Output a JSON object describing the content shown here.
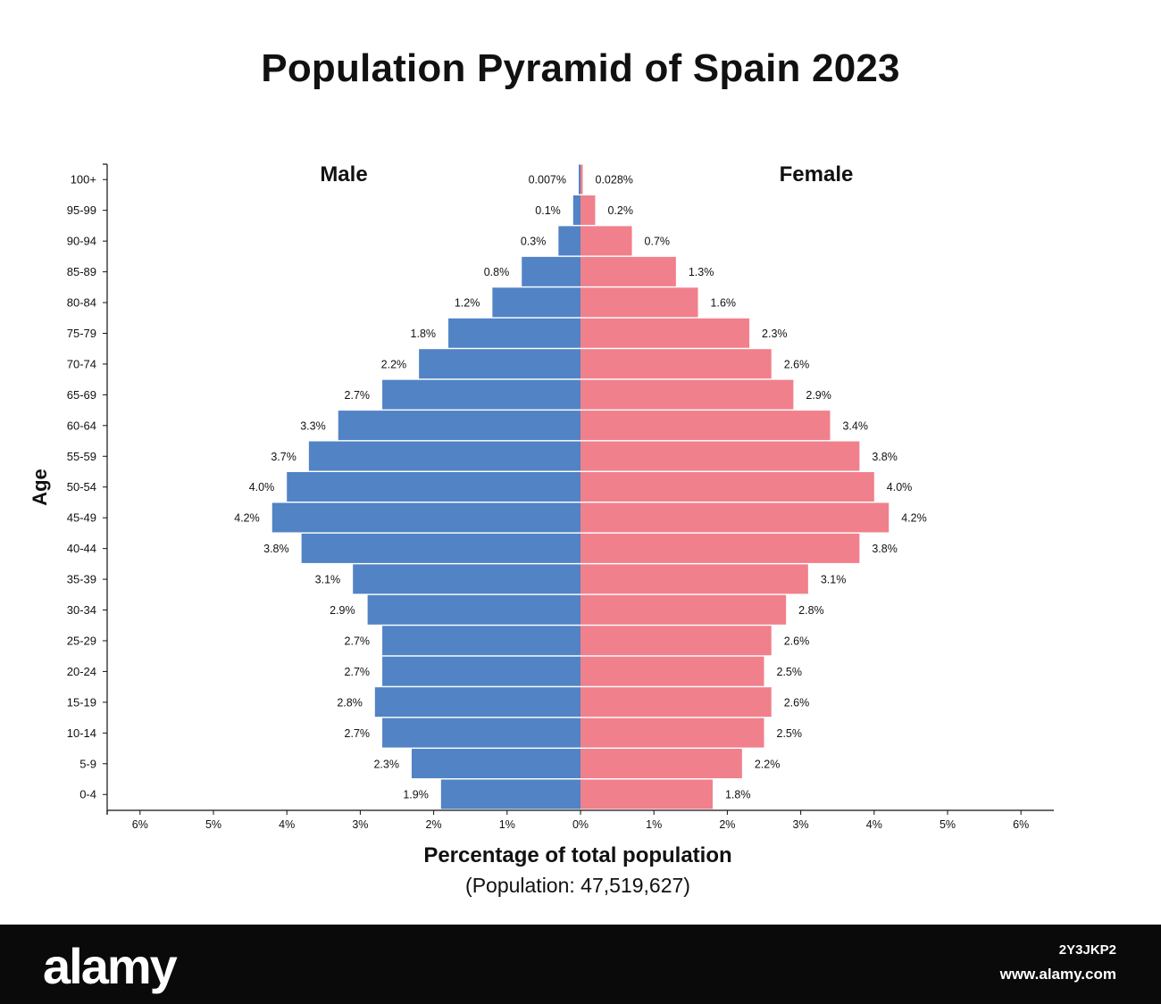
{
  "chart_data": {
    "type": "bar",
    "orientation": "horizontal-diverging",
    "title": "Population Pyramid of Spain 2023",
    "ylabel": "Age",
    "xlabel": "Percentage of total population",
    "subtitle": "(Population: 47,519,627)",
    "categories": [
      "100+",
      "95-99",
      "90-94",
      "85-89",
      "80-84",
      "75-79",
      "70-74",
      "65-69",
      "60-64",
      "55-59",
      "50-54",
      "45-49",
      "40-44",
      "35-39",
      "30-34",
      "25-29",
      "20-24",
      "15-19",
      "10-14",
      "5-9",
      "0-4"
    ],
    "xlim": [
      -6,
      6
    ],
    "x_ticks": [
      {
        "value": -6,
        "label": "6%"
      },
      {
        "value": -5,
        "label": "5%"
      },
      {
        "value": -4,
        "label": "4%"
      },
      {
        "value": -3,
        "label": "3%"
      },
      {
        "value": -2,
        "label": "2%"
      },
      {
        "value": -1,
        "label": "1%"
      },
      {
        "value": 0,
        "label": "0%"
      },
      {
        "value": 1,
        "label": "1%"
      },
      {
        "value": 2,
        "label": "2%"
      },
      {
        "value": 3,
        "label": "3%"
      },
      {
        "value": 4,
        "label": "4%"
      },
      {
        "value": 5,
        "label": "5%"
      },
      {
        "value": 6,
        "label": "6%"
      }
    ],
    "series": [
      {
        "name": "Male",
        "side": "left",
        "color": "#5183c5",
        "values": [
          0.007,
          0.1,
          0.3,
          0.8,
          1.2,
          1.8,
          2.2,
          2.7,
          3.3,
          3.7,
          4.0,
          4.2,
          3.8,
          3.1,
          2.9,
          2.7,
          2.7,
          2.8,
          2.7,
          2.3,
          1.9
        ],
        "labels": [
          "0.007%",
          "0.1%",
          "0.3%",
          "0.8%",
          "1.2%",
          "1.8%",
          "2.2%",
          "2.7%",
          "3.3%",
          "3.7%",
          "4.0%",
          "4.2%",
          "3.8%",
          "3.1%",
          "2.9%",
          "2.7%",
          "2.7%",
          "2.8%",
          "2.7%",
          "2.3%",
          "1.9%"
        ]
      },
      {
        "name": "Female",
        "side": "right",
        "color": "#f0808b",
        "values": [
          0.028,
          0.2,
          0.7,
          1.3,
          1.6,
          2.3,
          2.6,
          2.9,
          3.4,
          3.8,
          4.0,
          4.2,
          3.8,
          3.1,
          2.8,
          2.6,
          2.5,
          2.6,
          2.5,
          2.2,
          1.8
        ],
        "labels": [
          "0.028%",
          "0.2%",
          "0.7%",
          "1.3%",
          "1.6%",
          "2.3%",
          "2.6%",
          "2.9%",
          "3.4%",
          "3.8%",
          "4.0%",
          "4.2%",
          "3.8%",
          "3.1%",
          "2.8%",
          "2.6%",
          "2.5%",
          "2.6%",
          "2.5%",
          "2.2%",
          "1.8%"
        ]
      }
    ],
    "grid": false,
    "legend": "none"
  },
  "watermark": {
    "brand": "alamy",
    "image_id": "2Y3JKP2",
    "site": "www.alamy.com"
  }
}
